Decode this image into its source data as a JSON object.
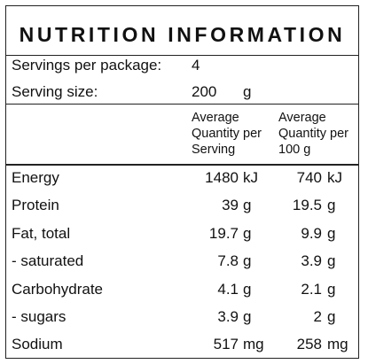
{
  "title": "NUTRITION INFORMATION",
  "servings": {
    "label": "Servings per package:",
    "value": "4"
  },
  "serving_size": {
    "label": "Serving size:",
    "value": "200",
    "unit": "g"
  },
  "columns": {
    "per_serving": [
      "Average",
      "Quantity per",
      "Serving"
    ],
    "per_100g": [
      "Average",
      "Quantity per",
      "100 g"
    ]
  },
  "rows": [
    {
      "name": "Energy",
      "serving": "1480",
      "serving_unit": "kJ",
      "per100": "740",
      "per100_unit": "kJ"
    },
    {
      "name": "Protein",
      "serving": "39",
      "serving_unit": "g",
      "per100": "19.5",
      "per100_unit": "g"
    },
    {
      "name": "Fat, total",
      "serving": "19.7",
      "serving_unit": "g",
      "per100": "9.9",
      "per100_unit": "g"
    },
    {
      "name": "- saturated",
      "serving": "7.8",
      "serving_unit": "g",
      "per100": "3.9",
      "per100_unit": "g"
    },
    {
      "name": "Carbohydrate",
      "serving": "4.1",
      "serving_unit": "g",
      "per100": "2.1",
      "per100_unit": "g"
    },
    {
      "name": "- sugars",
      "serving": "3.9",
      "serving_unit": "g",
      "per100": "2",
      "per100_unit": "g"
    },
    {
      "name": "Sodium",
      "serving": "517",
      "serving_unit": "mg",
      "per100": "258",
      "per100_unit": "mg"
    }
  ]
}
